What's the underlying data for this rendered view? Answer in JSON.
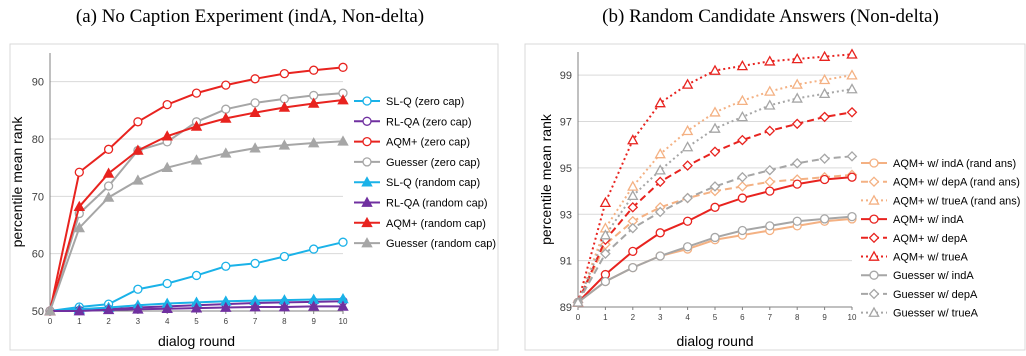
{
  "chart_data": [
    {
      "type": "line",
      "title": "(a) No Caption Experiment (indA, Non-delta)",
      "xlabel": "dialog round",
      "ylabel": "percentile mean rank",
      "x": [
        0,
        1,
        2,
        3,
        4,
        5,
        6,
        7,
        8,
        9,
        10
      ],
      "xlim": [
        0,
        10
      ],
      "ylim": [
        50,
        95
      ],
      "yticks": [
        50,
        60,
        70,
        80,
        90
      ],
      "grid": "horizontal",
      "legend_position": "right",
      "series": [
        {
          "name": "SL-Q (zero cap)",
          "color": "#1ab2e8",
          "marker": "circle-open",
          "dash": "solid",
          "values": [
            50,
            50.7,
            51.2,
            53.8,
            54.8,
            56.2,
            57.8,
            58.3,
            59.5,
            60.8,
            62
          ]
        },
        {
          "name": "RL-QA (zero cap)",
          "color": "#7030a0",
          "marker": "circle-open",
          "dash": "solid",
          "values": [
            50,
            50.1,
            50.3,
            50.6,
            50.8,
            51,
            51.2,
            51.4,
            51.5,
            51.6,
            51.7
          ]
        },
        {
          "name": "AQM+ (zero cap)",
          "color": "#e8231f",
          "marker": "circle-open",
          "dash": "solid",
          "values": [
            50,
            74.2,
            78.2,
            83,
            86,
            88,
            89.4,
            90.5,
            91.4,
            92,
            92.5
          ]
        },
        {
          "name": "Guesser (zero cap)",
          "color": "#a6a6a6",
          "marker": "circle-open",
          "dash": "solid",
          "values": [
            50,
            67,
            71.8,
            78,
            79.5,
            83,
            85.2,
            86.3,
            87,
            87.6,
            88
          ]
        },
        {
          "name": "SL-Q (random cap)",
          "color": "#1ab2e8",
          "marker": "triangle-filled",
          "dash": "solid",
          "values": [
            50,
            50.3,
            50.6,
            51,
            51.3,
            51.5,
            51.7,
            51.8,
            51.9,
            52,
            52.1
          ]
        },
        {
          "name": "RL-QA (random cap)",
          "color": "#7030a0",
          "marker": "triangle-filled",
          "dash": "solid",
          "values": [
            50,
            50,
            50.2,
            50.3,
            50.4,
            50.5,
            50.6,
            50.7,
            50.7,
            50.8,
            50.8
          ]
        },
        {
          "name": "AQM+ (random cap)",
          "color": "#e8231f",
          "marker": "triangle-filled",
          "dash": "solid",
          "values": [
            50,
            68.2,
            74,
            78,
            80.5,
            82.2,
            83.6,
            84.6,
            85.5,
            86.2,
            86.8
          ]
        },
        {
          "name": "Guesser (random cap)",
          "color": "#a6a6a6",
          "marker": "triangle-filled",
          "dash": "solid",
          "values": [
            50,
            64.5,
            69.8,
            72.8,
            75,
            76.3,
            77.5,
            78.4,
            78.9,
            79.3,
            79.6
          ]
        }
      ]
    },
    {
      "type": "line",
      "title": "(b) Random Candidate Answers (Non-delta)",
      "xlabel": "dialog round",
      "ylabel": "percentile mean rank",
      "x": [
        0,
        1,
        2,
        3,
        4,
        5,
        6,
        7,
        8,
        9,
        10
      ],
      "xlim": [
        0,
        10
      ],
      "ylim": [
        89,
        100
      ],
      "yticks": [
        89,
        91,
        93,
        95,
        97,
        99
      ],
      "grid": "horizontal",
      "legend_position": "right",
      "series": [
        {
          "name": "AQM+ w/ indA (rand ans)",
          "color": "#f4b183",
          "marker": "circle-open",
          "dash": "solid",
          "values": [
            89.2,
            90.1,
            90.7,
            91.2,
            91.5,
            91.9,
            92.1,
            92.3,
            92.5,
            92.7,
            92.8
          ]
        },
        {
          "name": "AQM+ w/ depA (rand ans)",
          "color": "#f4b183",
          "marker": "diamond-open",
          "dash": "dashed",
          "values": [
            89.2,
            91.7,
            92.7,
            93.3,
            93.7,
            94,
            94.2,
            94.4,
            94.5,
            94.6,
            94.7
          ]
        },
        {
          "name": "AQM+ w/ trueA (rand ans)",
          "color": "#f4b183",
          "marker": "triangle-open",
          "dash": "dotted",
          "values": [
            89.2,
            92.4,
            94.2,
            95.6,
            96.6,
            97.4,
            97.9,
            98.3,
            98.6,
            98.8,
            99
          ]
        },
        {
          "name": "AQM+ w/ indA",
          "color": "#e8231f",
          "marker": "circle-open",
          "dash": "solid",
          "values": [
            89.2,
            90.4,
            91.4,
            92.2,
            92.7,
            93.3,
            93.7,
            94,
            94.3,
            94.5,
            94.6
          ]
        },
        {
          "name": "AQM+ w/ depA",
          "color": "#e8231f",
          "marker": "diamond-open",
          "dash": "dashed",
          "values": [
            89.2,
            91.9,
            93.3,
            94.4,
            95.1,
            95.7,
            96.2,
            96.6,
            96.9,
            97.2,
            97.4
          ]
        },
        {
          "name": "AQM+ w/ trueA",
          "color": "#e8231f",
          "marker": "triangle-open",
          "dash": "dotted",
          "values": [
            89.2,
            93.5,
            96.2,
            97.8,
            98.6,
            99.2,
            99.4,
            99.6,
            99.7,
            99.8,
            99.9
          ]
        },
        {
          "name": "Guesser w/ indA",
          "color": "#a6a6a6",
          "marker": "circle-open",
          "dash": "solid",
          "values": [
            89.2,
            90.1,
            90.7,
            91.2,
            91.6,
            92,
            92.3,
            92.5,
            92.7,
            92.8,
            92.9
          ]
        },
        {
          "name": "Guesser w/ depA",
          "color": "#a6a6a6",
          "marker": "diamond-open",
          "dash": "dashed",
          "values": [
            89.2,
            91.3,
            92.4,
            93.1,
            93.7,
            94.2,
            94.6,
            94.9,
            95.2,
            95.4,
            95.5
          ]
        },
        {
          "name": "Guesser w/ trueA",
          "color": "#a6a6a6",
          "marker": "triangle-open",
          "dash": "dotted",
          "values": [
            89.2,
            92.1,
            93.8,
            94.9,
            95.9,
            96.7,
            97.2,
            97.7,
            98,
            98.2,
            98.4
          ]
        }
      ]
    }
  ]
}
